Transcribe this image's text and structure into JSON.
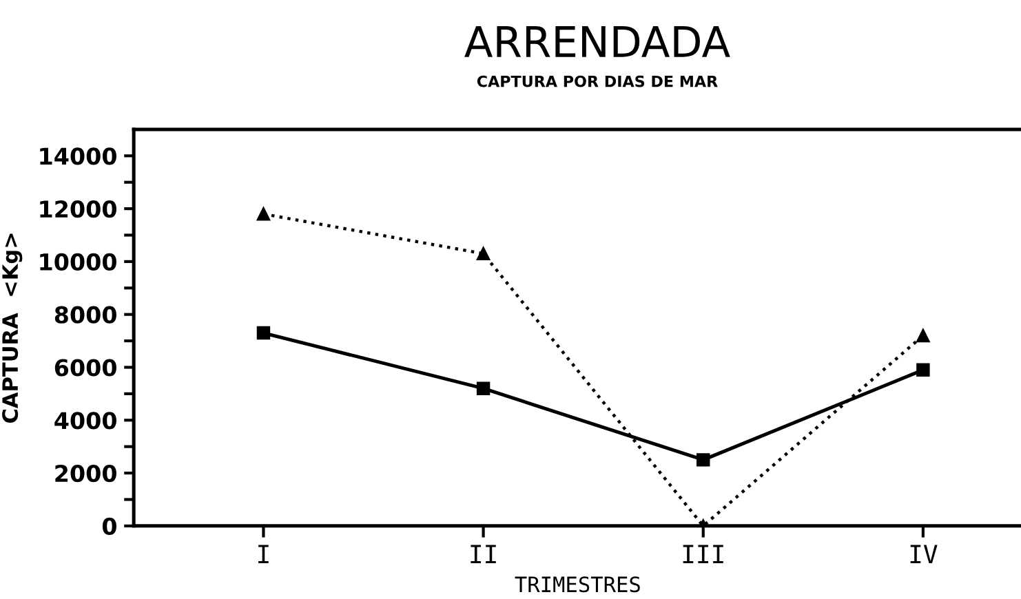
{
  "chart_data": {
    "type": "line",
    "title": "ARRENDADA",
    "subtitle": "CAPTURA POR DIAS DE MAR",
    "xlabel": "TRIMESTRES",
    "ylabel": "CAPTURA  <Kg>",
    "categories": [
      "I",
      "II",
      "III",
      "IV"
    ],
    "series": [
      {
        "color": "#000000",
        "marker": "triangle",
        "line_style": "dotted",
        "values": [
          11800,
          10300,
          0,
          7200
        ]
      },
      {
        "color": "#000000",
        "marker": "square",
        "line_style": "solid",
        "values": [
          7300,
          5200,
          2500,
          5900
        ]
      }
    ],
    "ylim": [
      0,
      15000
    ],
    "yticks": [
      0,
      {
        "value": 1000,
        "label": null
      },
      2000,
      {
        "value": 3000,
        "label": null
      },
      4000,
      {
        "value": 5000,
        "label": null
      },
      6000,
      {
        "value": 7000,
        "label": null
      },
      8000,
      {
        "value": 9000,
        "label": null
      },
      10000,
      {
        "value": 11000,
        "label": null
      },
      12000,
      {
        "value": 13000,
        "label": null
      },
      14000
    ],
    "grid": false,
    "legend": false
  }
}
